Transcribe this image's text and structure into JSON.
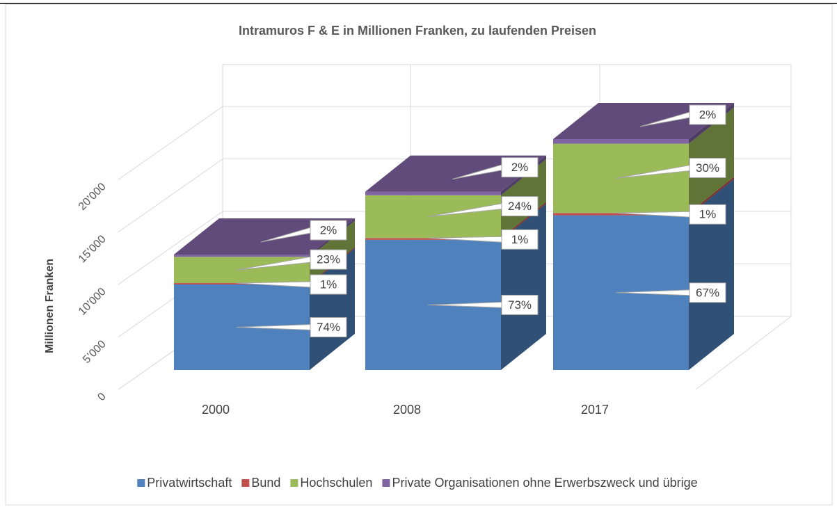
{
  "chart_data": {
    "type": "bar3d_stacked",
    "title": "Intramuros F & E in Millionen Franken, zu laufenden Preisen",
    "ylabel": "Millionen Franken",
    "categories": [
      "2000",
      "2008",
      "2017"
    ],
    "series": [
      {
        "name": "Privatwirtschaft",
        "color": "#4f81bd",
        "values": [
          8150,
          12400,
          14740
        ],
        "value_labels": [
          "74%",
          "73%",
          "67%"
        ]
      },
      {
        "name": "Bund",
        "color": "#c0504d",
        "values": [
          130,
          170,
          220
        ],
        "value_labels": [
          "1%",
          "1%",
          "1%"
        ]
      },
      {
        "name": "Hochschulen",
        "color": "#9bbb59",
        "values": [
          2500,
          4080,
          6600
        ],
        "value_labels": [
          "23%",
          "24%",
          "30%"
        ]
      },
      {
        "name": "Private Organisationen ohne Erwerbszweck und übrige",
        "color": "#8064a2",
        "values": [
          220,
          340,
          440
        ],
        "value_labels": [
          "2%",
          "2%",
          "2%"
        ]
      }
    ],
    "ylim": [
      0,
      24000
    ],
    "yticks": [
      0,
      {
        "value": 5000,
        "label": "5’000"
      },
      {
        "value": 10000,
        "label": "10’000"
      },
      {
        "value": 15000,
        "label": "15’000"
      },
      {
        "value": 20000,
        "label": "20’000"
      }
    ],
    "grid": true,
    "legend": "bottom"
  }
}
